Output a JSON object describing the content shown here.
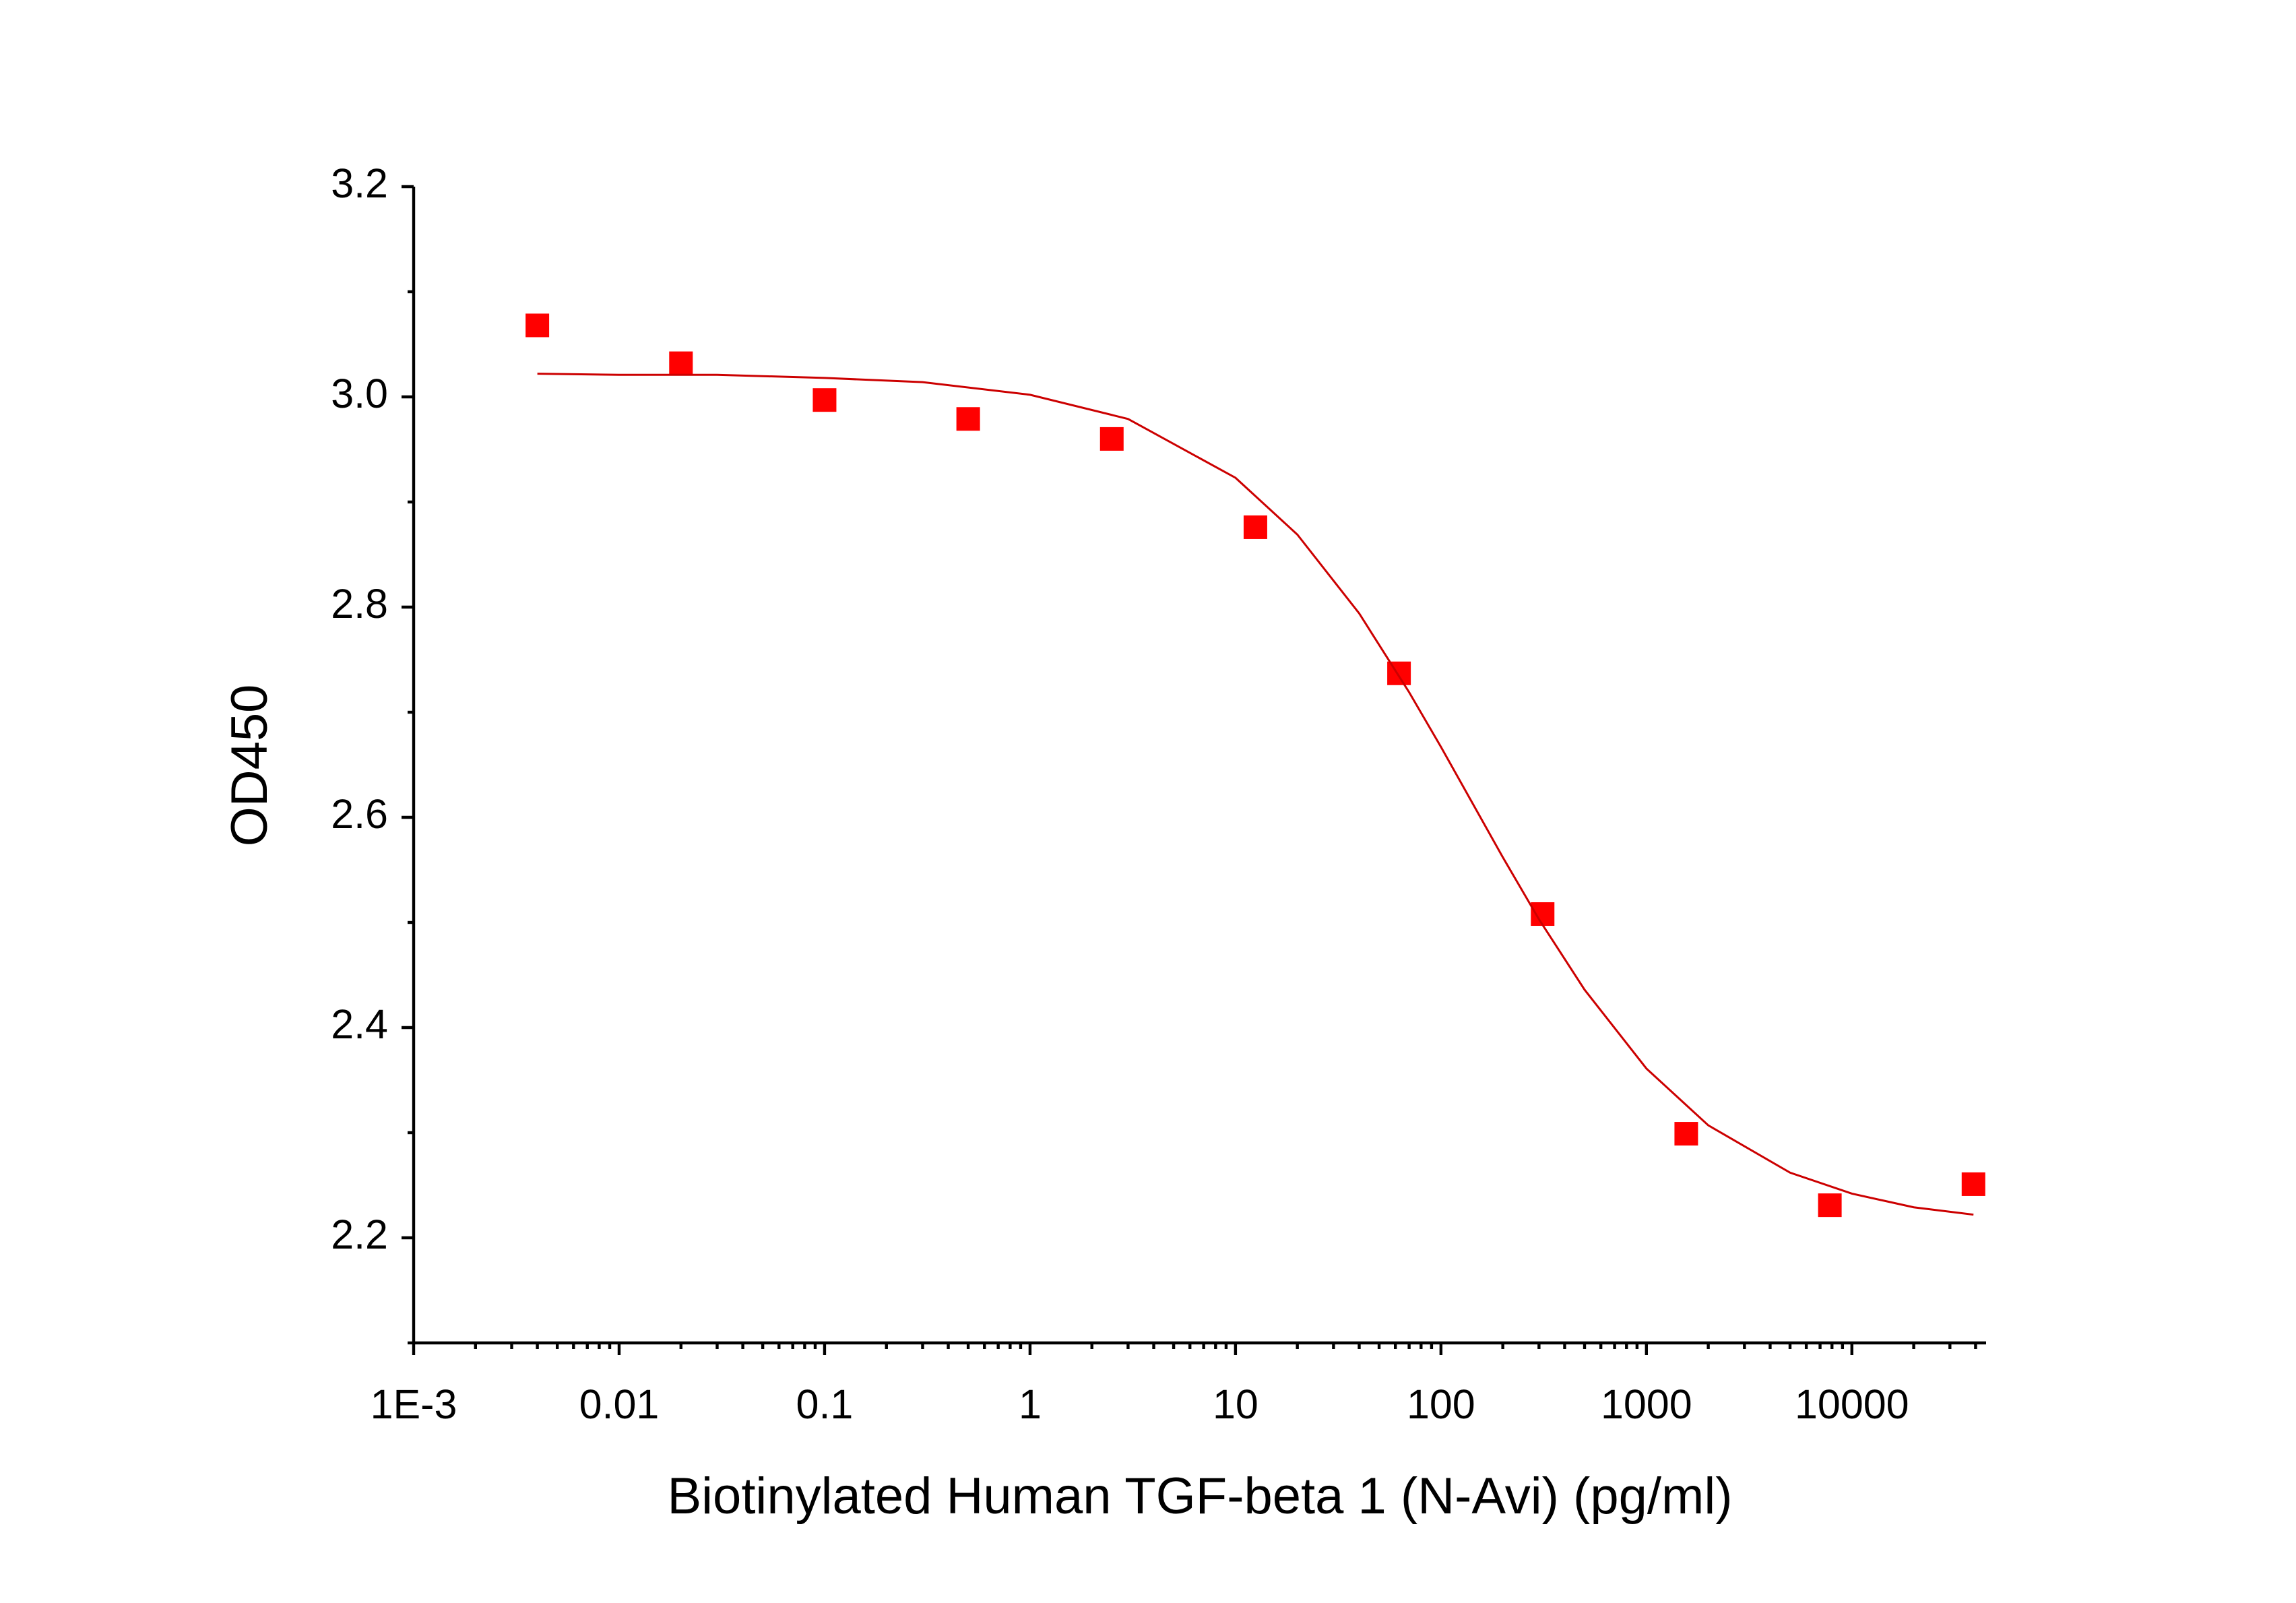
{
  "chart_data": {
    "type": "scatter",
    "x_label": "Biotinylated Human TGF-beta 1 (N-Avi) (pg/ml)",
    "y_label": "OD450",
    "x_scale": "log",
    "xlim": [
      0.001,
      45000
    ],
    "ylim": [
      2.1,
      3.2
    ],
    "xticks": [
      {
        "value": 0.001,
        "label": "1E-3"
      },
      0.01,
      0.1,
      1,
      10,
      100,
      1000,
      10000
    ],
    "yticks": [
      {
        "value": 2.2,
        "label": "2.2"
      },
      2.4,
      2.6,
      2.8,
      {
        "value": 3.0,
        "label": "3.0"
      },
      3.2
    ],
    "series": [
      {
        "color": "#ff0000",
        "x": [
          0.004,
          0.02,
          0.1,
          0.5,
          2.5,
          12.5,
          62.5,
          312.5,
          1562.5,
          7812.5,
          39062.5
        ],
        "values": [
          3.068,
          3.032,
          2.997,
          2.979,
          2.96,
          2.876,
          2.737,
          2.508,
          2.299,
          2.231,
          2.251
        ]
      },
      {
        "color": "#cc0000",
        "x": [
          0.004,
          0.01,
          0.03,
          0.1,
          0.3,
          1,
          3,
          10,
          20,
          40,
          70,
          100,
          140,
          200,
          300,
          500,
          1000,
          2000,
          5000,
          10000,
          20000,
          39062.5
        ],
        "values": [
          3.022,
          3.021,
          3.021,
          3.018,
          3.014,
          3.002,
          2.979,
          2.923,
          2.869,
          2.794,
          2.719,
          2.667,
          2.616,
          2.562,
          2.503,
          2.436,
          2.361,
          2.307,
          2.262,
          2.242,
          2.229,
          2.222
        ]
      }
    ]
  }
}
